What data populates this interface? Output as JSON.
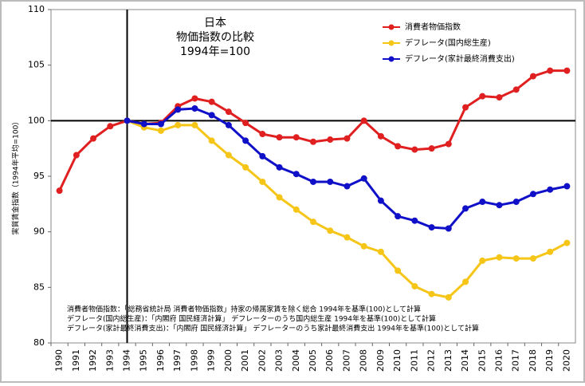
{
  "chart_data": {
    "type": "line",
    "title": [
      "日本",
      "物価指数の比較",
      "1994年=100"
    ],
    "y_label": "実質賃金指数（1994年平均=100）",
    "categories": [
      "1990",
      "1991",
      "1992",
      "1993",
      "1994",
      "1995",
      "1996",
      "1997",
      "1998",
      "1999",
      "2000",
      "2001",
      "2002",
      "2003",
      "2004",
      "2005",
      "2006",
      "2007",
      "2008",
      "2009",
      "2010",
      "2011",
      "2012",
      "2013",
      "2014",
      "2015",
      "2016",
      "2017",
      "2018",
      "2019",
      "2020"
    ],
    "series": [
      {
        "name": "消費者物価指数",
        "color": "#e02020",
        "values": [
          93.7,
          96.9,
          98.4,
          99.5,
          100,
          99.7,
          99.8,
          101.3,
          102,
          101.7,
          100.8,
          99.8,
          98.8,
          98.5,
          98.5,
          98.1,
          98.3,
          98.4,
          100,
          98.6,
          97.7,
          97.4,
          97.5,
          97.9,
          101.2,
          102.2,
          102.1,
          102.8,
          104,
          104.5,
          104.5
        ]
      },
      {
        "name": "デフレータ(国内総生産)",
        "color": "#f5c518",
        "values": [
          null,
          null,
          null,
          null,
          100,
          99.4,
          99.1,
          99.6,
          99.6,
          98.2,
          96.9,
          95.8,
          94.5,
          93.1,
          92.0,
          90.9,
          90.1,
          89.5,
          88.7,
          88.2,
          86.5,
          85.1,
          84.4,
          84.1,
          85.5,
          87.4,
          87.7,
          87.6,
          87.6,
          88.2,
          89.0
        ]
      },
      {
        "name": "デフレータ(家計最終消費支出)",
        "color": "#1010c8",
        "values": [
          null,
          null,
          null,
          null,
          100,
          99.7,
          99.7,
          101,
          101.1,
          100.5,
          99.6,
          98.2,
          96.8,
          95.8,
          95.2,
          94.5,
          94.5,
          94.1,
          94.8,
          92.8,
          91.4,
          91.0,
          90.4,
          90.3,
          92.1,
          92.7,
          92.4,
          92.7,
          93.4,
          93.8,
          94.1
        ]
      }
    ],
    "ylim": [
      80,
      110
    ],
    "yticks": [
      80,
      85,
      90,
      95,
      100,
      105,
      110
    ],
    "reference_lines": {
      "y": 100,
      "x": "1994"
    },
    "legend": "upper right",
    "grid": false,
    "notes": [
      "消費者物価指数：「総務省統計局 消費者物価指数」持家の帰属家賃を除く総合 1994年を基準(100)として計算",
      "デフレータ(国内総生産)：「内閣府 国民経済計算」 デフレーターのうち国内総生産 1994年を基準(100)として計算",
      "デフレータ(家計最終消費支出)：「内閣府 国民経済計算」 デフレーターのうち家計最終消費支出 1994年を基準(100)として計算"
    ]
  }
}
